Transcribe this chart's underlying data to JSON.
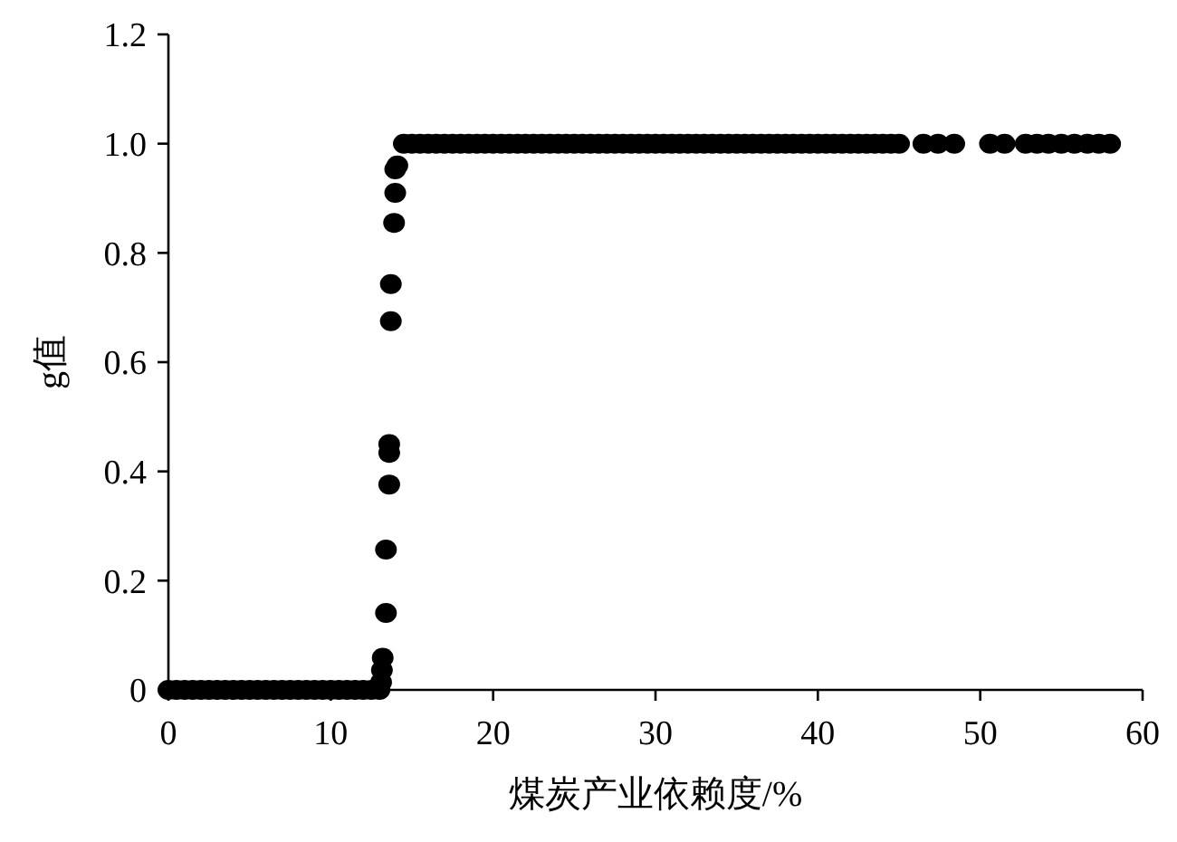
{
  "chart_data": {
    "type": "scatter",
    "xlabel": "煤炭产业依赖度/%",
    "ylabel": "g值",
    "x": [
      0,
      0.5,
      1,
      1.5,
      2,
      2.5,
      3,
      3.5,
      4,
      4.5,
      5,
      5.5,
      6,
      6.5,
      7,
      7.5,
      8,
      8.5,
      9,
      9.5,
      10,
      10.5,
      11,
      11.5,
      12,
      12.5,
      13,
      13.1,
      13.15,
      13.2,
      13.4,
      13.4,
      13.6,
      13.6,
      13.6,
      13.7,
      13.7,
      13.9,
      13.97,
      13.97,
      14.1,
      14.5,
      15,
      15.5,
      16,
      16.5,
      17,
      17.5,
      18,
      18.5,
      19,
      19.5,
      20,
      20.5,
      21,
      21.5,
      22,
      22.5,
      23,
      23.5,
      24,
      24.5,
      25,
      25.5,
      26,
      26.5,
      27,
      27.5,
      28,
      28.5,
      29,
      29.5,
      30,
      30.5,
      31,
      31.5,
      32,
      32.5,
      33,
      33.5,
      34,
      34.5,
      35,
      35.5,
      36,
      36.5,
      37,
      37.5,
      38,
      38.5,
      39,
      39.5,
      40,
      40.5,
      41,
      41.5,
      42,
      42.5,
      43,
      43.5,
      44,
      44.5,
      45,
      46.5,
      47.4,
      48.4,
      50.6,
      51.5,
      52.8,
      53.5,
      54.2,
      55,
      55.8,
      56.6,
      57.3,
      58
    ],
    "values": [
      0,
      0,
      0,
      0,
      0,
      0,
      0,
      0,
      0,
      0,
      0,
      0,
      0,
      0,
      0,
      0,
      0,
      0,
      0,
      0,
      0,
      0,
      0,
      0,
      0,
      0,
      0,
      0.014,
      0.036,
      0.059,
      0.141,
      0.257,
      0.376,
      0.434,
      0.45,
      0.675,
      0.743,
      0.855,
      0.91,
      0.953,
      0.96,
      1,
      1,
      1,
      1,
      1,
      1,
      1,
      1,
      1,
      1,
      1,
      1,
      1,
      1,
      1,
      1,
      1,
      1,
      1,
      1,
      1,
      1,
      1,
      1,
      1,
      1,
      1,
      1,
      1,
      1,
      1,
      1,
      1,
      1,
      1,
      1,
      1,
      1,
      1,
      1,
      1,
      1,
      1,
      1,
      1,
      1,
      1,
      1,
      1,
      1,
      1,
      1,
      1,
      1,
      1,
      1,
      1,
      1,
      1,
      1,
      1,
      1,
      1,
      1,
      1,
      1,
      1,
      1,
      1,
      1,
      1,
      1,
      1,
      1,
      1
    ],
    "color": "#000000",
    "marker": "circle",
    "xlim": [
      0,
      60
    ],
    "xticks": [
      0,
      10,
      20,
      30,
      40,
      50,
      60
    ],
    "ylim": [
      0,
      1.2
    ],
    "yticks": [
      {
        "value": 0,
        "label": "0"
      },
      {
        "value": 0.2,
        "label": "0.2"
      },
      {
        "value": 0.4,
        "label": "0.4"
      },
      {
        "value": 0.6,
        "label": "0.6"
      },
      {
        "value": 0.8,
        "label": "0.8"
      },
      {
        "value": 1.0,
        "label": "1.0"
      },
      {
        "value": 1.2,
        "label": "1.2"
      }
    ],
    "grid": false
  }
}
